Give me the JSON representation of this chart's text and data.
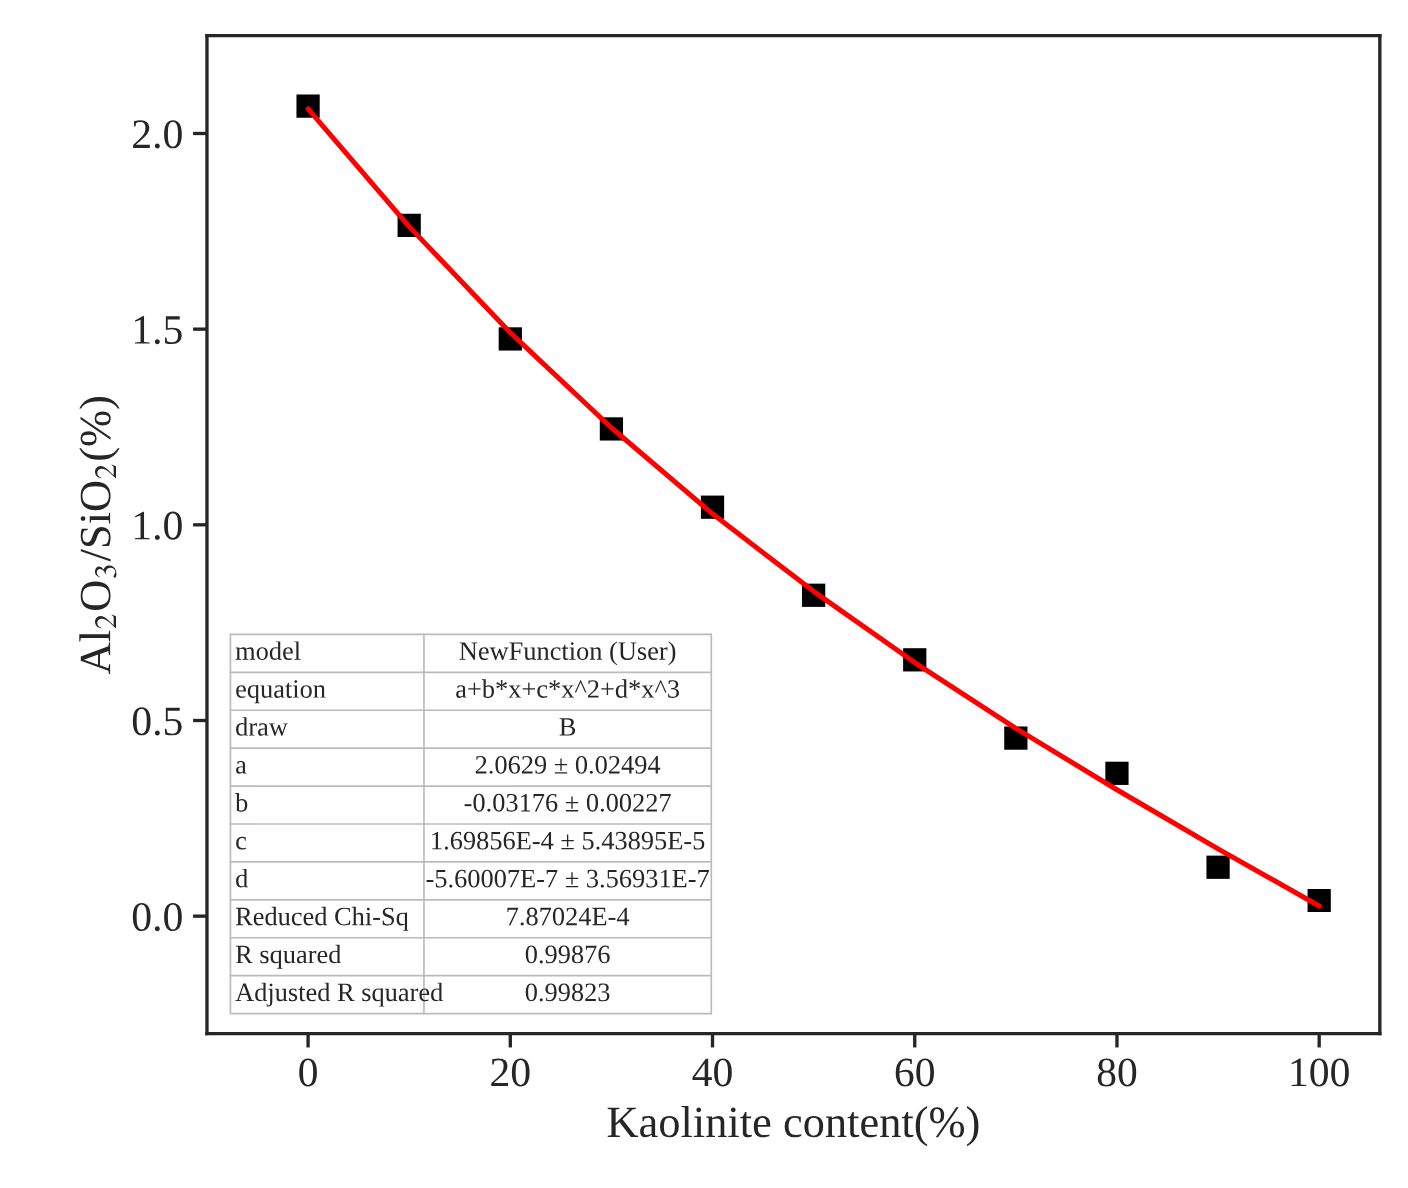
{
  "chart_data": {
    "type": "scatter",
    "xlabel": "Kaolinite content(%)",
    "ylabel": "Al$_{2}$O$_{3}$/SiO$_{2}$(%)",
    "x": [
      0,
      10,
      20,
      30,
      40,
      50,
      60,
      70,
      80,
      90,
      100
    ],
    "series": [
      {
        "type": "scatter",
        "color": "#000000",
        "marker": "square",
        "values": [
          2.07,
          1.765,
          1.475,
          1.245,
          1.045,
          0.82,
          0.655,
          0.455,
          0.365,
          0.125,
          0.04
        ]
      },
      {
        "type": "line",
        "color": "#ff0000",
        "marker": "none",
        "line_style": "solid",
        "values": [
          2.063,
          1.762,
          1.491,
          1.248,
          1.028,
          0.83,
          0.648,
          0.48,
          0.323,
          0.172,
          0.026
        ]
      }
    ],
    "xlim": [
      -10,
      106
    ],
    "ylim": [
      -0.3,
      2.25
    ],
    "xticks": [
      0,
      20,
      40,
      60,
      80,
      100
    ],
    "yticks": [
      {
        "value": 0,
        "label": "0.0"
      },
      {
        "value": 0.5,
        "label": "0.5"
      },
      {
        "value": 1,
        "label": "1.0"
      },
      {
        "value": 1.5,
        "label": "1.5"
      },
      {
        "value": 2,
        "label": "2.0"
      }
    ],
    "grid": false,
    "legend": false,
    "annotations": [
      "model",
      "NewFunction (User)",
      "equation",
      "a+b*x+c*x^2+d*x^3",
      "draw",
      "B",
      "a",
      "2.0629 ± 0.02494",
      "b",
      "-0.03176 ± 0.00227",
      "c",
      "1.69856E-4 ± 5.43895E-5",
      "d",
      "-5.60007E-7 ± 3.56931E-7",
      "Reduced Chi-Sq",
      "7.87024E-4",
      "R squared",
      "0.99876",
      "Adjusted R squared",
      "0.99823"
    ]
  }
}
